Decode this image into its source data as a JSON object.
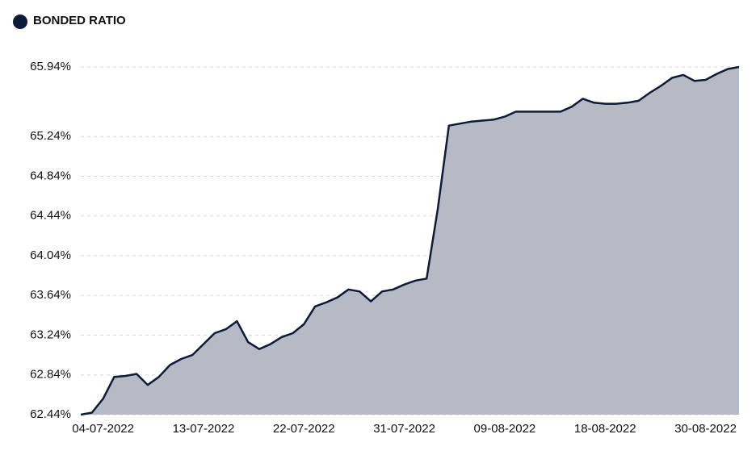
{
  "chart_data": {
    "type": "area",
    "title": "BONDED RATIO",
    "categories": [
      null,
      null,
      "04-07-2022",
      null,
      null,
      null,
      null,
      null,
      null,
      null,
      null,
      "13-07-2022",
      null,
      null,
      null,
      null,
      null,
      null,
      null,
      null,
      "22-07-2022",
      null,
      null,
      null,
      null,
      null,
      null,
      null,
      null,
      "31-07-2022",
      null,
      null,
      null,
      null,
      null,
      null,
      null,
      null,
      "09-08-2022",
      null,
      null,
      null,
      null,
      null,
      null,
      null,
      null,
      "18-08-2022",
      null,
      null,
      null,
      null,
      null,
      null,
      null,
      null,
      "30-08-2022",
      null,
      null,
      null
    ],
    "series": [
      {
        "name": "BONDED RATIO",
        "color": "#0d1b3a",
        "values": [
          62.44,
          62.46,
          62.6,
          62.82,
          62.83,
          62.85,
          62.74,
          62.82,
          62.94,
          63.0,
          63.04,
          63.15,
          63.26,
          63.3,
          63.38,
          63.17,
          63.1,
          63.15,
          63.22,
          63.26,
          63.35,
          63.53,
          63.57,
          63.62,
          63.7,
          63.68,
          63.58,
          63.68,
          63.7,
          63.75,
          63.79,
          63.81,
          64.51,
          65.35,
          65.37,
          65.39,
          65.4,
          65.41,
          65.44,
          65.49,
          65.49,
          65.49,
          65.49,
          65.49,
          65.54,
          65.62,
          65.58,
          65.57,
          65.57,
          65.58,
          65.6,
          65.68,
          65.75,
          65.83,
          65.86,
          65.8,
          65.81,
          65.87,
          65.92,
          65.94
        ]
      }
    ],
    "area_color": "#b6bac4",
    "ylim": [
      62.44,
      65.94
    ],
    "yticks": [
      {
        "value": 62.44,
        "label": "62.44%"
      },
      {
        "value": 62.84,
        "label": "62.84%"
      },
      {
        "value": 63.24,
        "label": "63.24%"
      },
      {
        "value": 63.64,
        "label": "63.64%"
      },
      {
        "value": 64.04,
        "label": "64.04%"
      },
      {
        "value": 64.44,
        "label": "64.44%"
      },
      {
        "value": 64.84,
        "label": "64.84%"
      },
      {
        "value": 65.24,
        "label": "65.24%"
      },
      {
        "value": 65.94,
        "label": "65.94%"
      }
    ],
    "grid": true
  }
}
